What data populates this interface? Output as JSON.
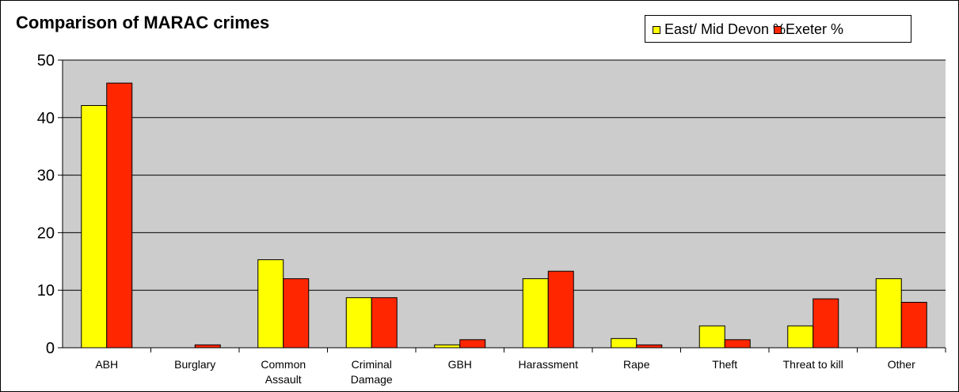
{
  "chart_data": {
    "type": "bar",
    "title": "Comparison of MARAC crimes",
    "categories": [
      [
        "ABH"
      ],
      [
        "Burglary"
      ],
      [
        "Common",
        "Assault"
      ],
      [
        "Criminal",
        "Damage"
      ],
      [
        "GBH"
      ],
      [
        "Harassment"
      ],
      [
        "Rape"
      ],
      [
        "Theft"
      ],
      [
        "Threat to kill"
      ],
      [
        "Other"
      ]
    ],
    "series": [
      {
        "name": "East/ Mid Devon %",
        "color": "#ffff00",
        "values": [
          42.1,
          0,
          15.3,
          8.7,
          0.5,
          12,
          1.6,
          3.8,
          3.8,
          12
        ]
      },
      {
        "name": "Exeter %",
        "color": "#ff2600",
        "values": [
          46,
          0.5,
          12,
          8.7,
          1.4,
          13.3,
          0.5,
          1.4,
          8.5,
          7.9
        ]
      }
    ],
    "xlabel": "",
    "ylabel": "",
    "ylim": [
      0,
      50
    ],
    "yticks": [
      "0",
      "10",
      "20",
      "30",
      "40",
      "50"
    ],
    "grid": true,
    "plot_background": "#cccccc",
    "legend_position": "top-right"
  }
}
